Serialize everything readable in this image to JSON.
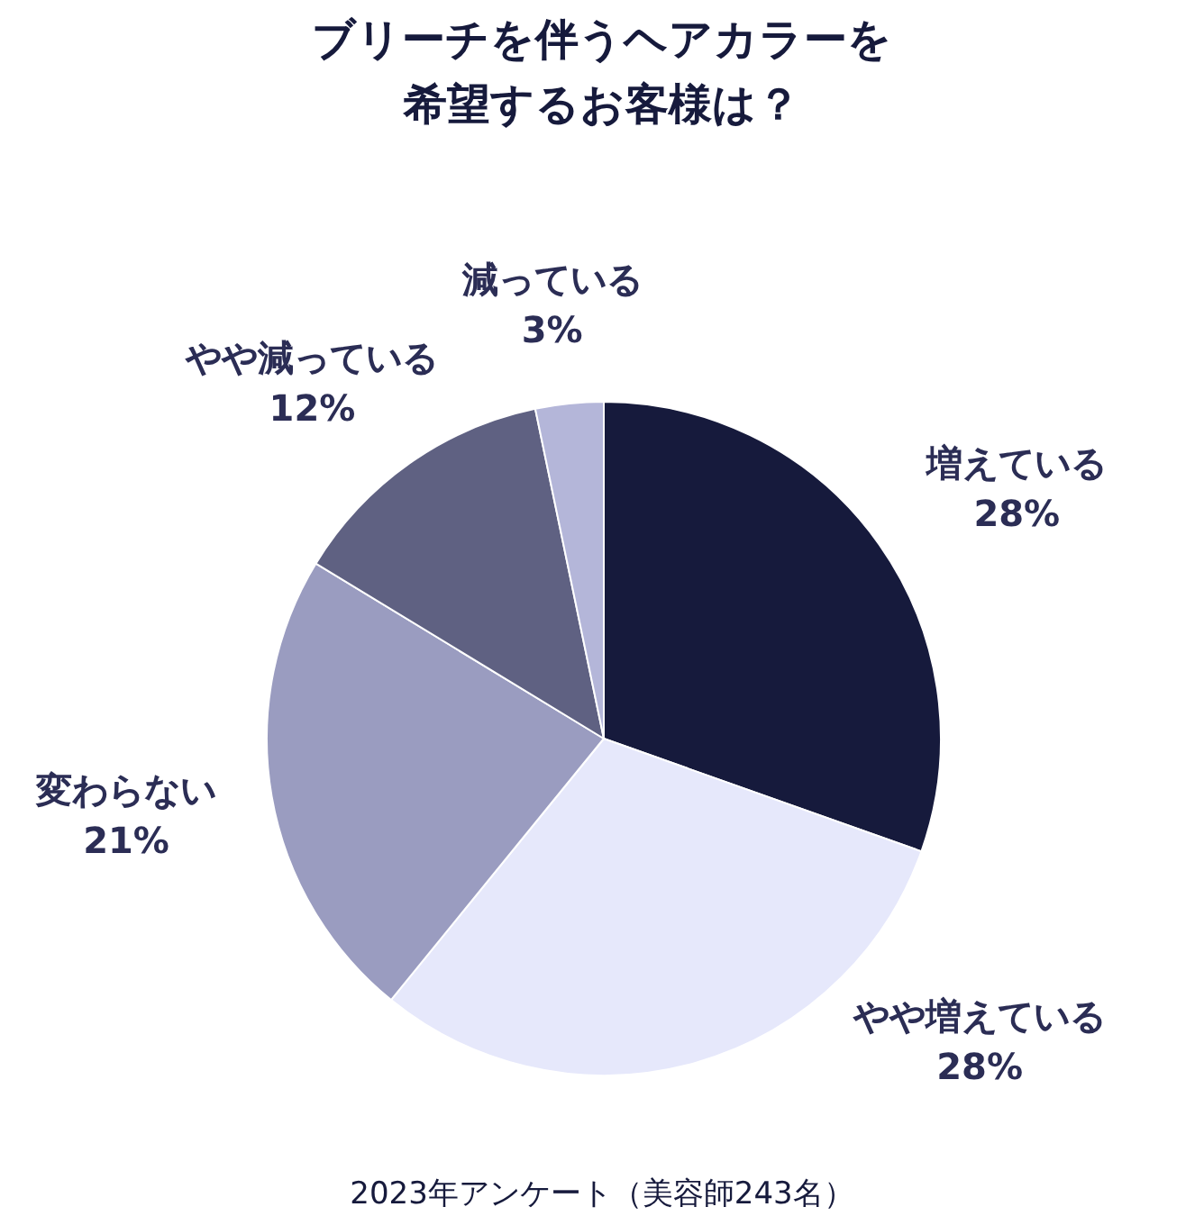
{
  "chart_data": {
    "type": "pie",
    "title": "ブリーチを伴うヘアカラーを希望するお客様は？",
    "categories": [
      "増えている",
      "やや増えている",
      "変わらない",
      "やや減っている",
      "減っている"
    ],
    "values": [
      28,
      28,
      21,
      12,
      3
    ],
    "colors": [
      "#161a3c",
      "#e6e8fb",
      "#9a9cc0",
      "#5f6182",
      "#b4b6d9"
    ],
    "value_labels": [
      "28%",
      "28%",
      "21%",
      "12%",
      "3%"
    ],
    "annotations": [
      "2023年アンケート（美容師243名）"
    ]
  }
}
